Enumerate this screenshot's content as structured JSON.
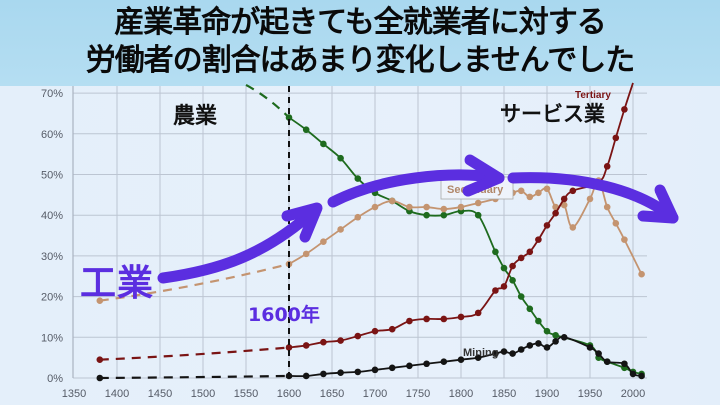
{
  "header": {
    "line1": "産業革命が起きても全就業者に対する",
    "line2": "労働者の割合はあまり変化しませんでした"
  },
  "annotations": {
    "agriculture_jp": "農業",
    "services_jp": "サービス業",
    "industry_jp": "工業",
    "year_marker": "1600年",
    "tertiary_label": "Tertiary",
    "secondary_label": "Secondary",
    "mining_label": "Mining"
  },
  "colors": {
    "agriculture": "#1e6b1e",
    "secondary": "#c49470",
    "tertiary": "#7a1414",
    "mining": "#141414",
    "arrow": "#5b2ee0",
    "header_bg": "#aedbf0"
  },
  "chart_data": {
    "type": "line",
    "title": "",
    "xlabel": "",
    "ylabel": "",
    "xlim": [
      1350,
      2010
    ],
    "ylim": [
      0,
      70
    ],
    "x_ticks": [
      1350,
      1400,
      1450,
      1500,
      1550,
      1600,
      1650,
      1700,
      1750,
      1800,
      1850,
      1900,
      1950,
      2000
    ],
    "y_ticks": [
      "0%",
      "10%",
      "20%",
      "30%",
      "40%",
      "50%",
      "60%",
      "70%"
    ],
    "grid": true,
    "vertical_marker": {
      "x": 1600,
      "label": "1600年",
      "style": "dashed"
    },
    "series": [
      {
        "name": "Agriculture (農業)",
        "dashed_segment": {
          "x": [
            1550,
            1600
          ],
          "y": [
            72,
            64
          ]
        },
        "x": [
          1600,
          1620,
          1640,
          1660,
          1680,
          1700,
          1720,
          1740,
          1760,
          1780,
          1800,
          1820,
          1840,
          1850,
          1860,
          1870,
          1880,
          1890,
          1900,
          1910,
          1950,
          1960,
          1970,
          1990,
          2000,
          2010
        ],
        "y": [
          64,
          61,
          57.5,
          54,
          49,
          45.5,
          43.5,
          41,
          40,
          40,
          41,
          40,
          31,
          27,
          24,
          20,
          17,
          14,
          11.5,
          10.5,
          8,
          5,
          4,
          2.5,
          1.5,
          1
        ]
      },
      {
        "name": "Secondary (工業)",
        "dashed_segment": {
          "x": [
            1380,
            1600
          ],
          "y": [
            19,
            28
          ]
        },
        "x": [
          1600,
          1620,
          1640,
          1660,
          1680,
          1700,
          1720,
          1740,
          1760,
          1780,
          1800,
          1820,
          1840,
          1860,
          1870,
          1880,
          1890,
          1900,
          1910,
          1920,
          1930,
          1950,
          1960,
          1970,
          1980,
          1990,
          2010
        ],
        "y": [
          28,
          30.5,
          33.5,
          36.5,
          39.5,
          42,
          43.5,
          42,
          42,
          41.5,
          42,
          43,
          44,
          45.5,
          46,
          44.5,
          45.5,
          46.5,
          42,
          42.5,
          37,
          44,
          48.5,
          42,
          38,
          34,
          25.5
        ]
      },
      {
        "name": "Tertiary (サービス業)",
        "dashed_segment": {
          "x": [
            1380,
            1600
          ],
          "y": [
            4.5,
            7.5
          ]
        },
        "x": [
          1600,
          1620,
          1640,
          1660,
          1680,
          1700,
          1720,
          1740,
          1760,
          1780,
          1800,
          1820,
          1840,
          1850,
          1860,
          1870,
          1880,
          1890,
          1900,
          1910,
          1920,
          1930,
          1960,
          1970,
          1980,
          1990,
          2000
        ],
        "y": [
          7.5,
          8,
          8.8,
          9.2,
          10.3,
          11.5,
          12,
          14,
          14.5,
          14.5,
          15,
          16,
          21.5,
          22.5,
          27.5,
          29.5,
          31,
          34,
          37.5,
          40.5,
          44,
          46,
          48,
          52,
          59,
          66,
          75
        ]
      },
      {
        "name": "Mining",
        "dashed_segment": {
          "x": [
            1380,
            1600
          ],
          "y": [
            0,
            0.5
          ]
        },
        "x": [
          1600,
          1620,
          1640,
          1660,
          1680,
          1700,
          1720,
          1740,
          1760,
          1780,
          1800,
          1820,
          1840,
          1850,
          1860,
          1870,
          1880,
          1890,
          1900,
          1910,
          1920,
          1950,
          1960,
          1970,
          1990,
          2000,
          2010
        ],
        "y": [
          0.5,
          0.5,
          1,
          1.3,
          1.5,
          2,
          2.5,
          3,
          3.5,
          4,
          4.5,
          5,
          6,
          6.5,
          6,
          7,
          8,
          8.5,
          7.5,
          9,
          10,
          7.5,
          6,
          4,
          3.5,
          1,
          0.5
        ]
      }
    ]
  }
}
